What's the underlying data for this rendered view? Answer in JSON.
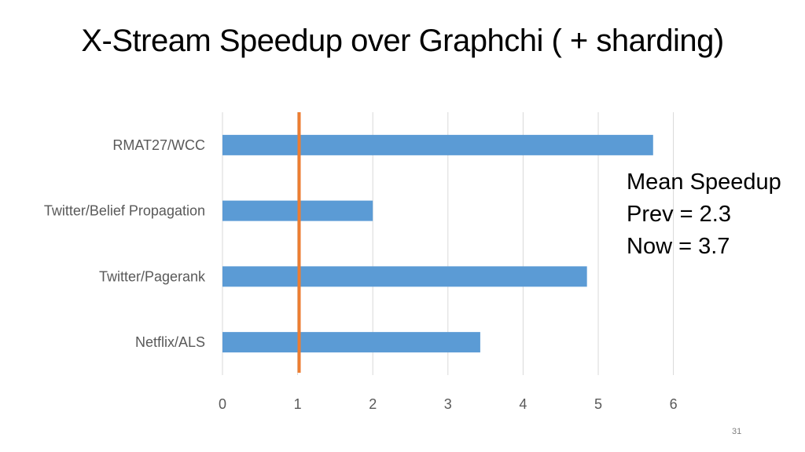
{
  "slide": {
    "title": "X-Stream Speedup over Graphchi ( + sharding)",
    "page_number": "31"
  },
  "annotation": {
    "lines": [
      "Mean Speedup",
      "Prev = 2.3",
      "Now = 3.7"
    ]
  },
  "chart_data": {
    "type": "bar",
    "orientation": "horizontal",
    "categories": [
      "RMAT27/WCC",
      "Twitter/Belief Propagation",
      "Twitter/Pagerank",
      "Netflix/ALS"
    ],
    "values": [
      5.73,
      2.0,
      4.85,
      3.43
    ],
    "xlim": [
      0,
      6
    ],
    "xticks": [
      0,
      1,
      2,
      3,
      4,
      5,
      6
    ],
    "reference_line": 1.02,
    "grid": true,
    "colors": {
      "bar": "#5b9bd5",
      "reference_line": "#ed7d31",
      "grid": "#d9d9d9",
      "tick_text": "#595959"
    }
  }
}
